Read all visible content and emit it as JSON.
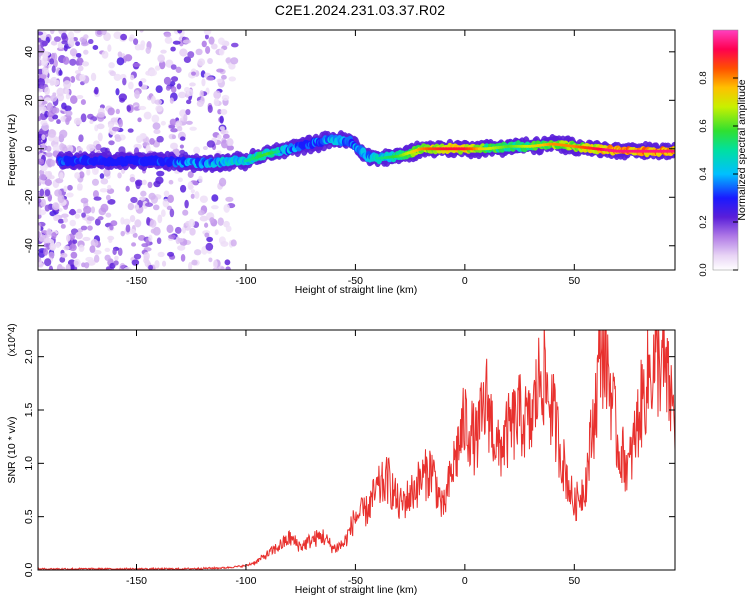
{
  "figure": {
    "title": "C2E1.2024.231.03.37.R02"
  },
  "chart_data": [
    {
      "type": "heatmap",
      "title": "C2E1.2024.231.03.37.R02",
      "xlabel": "Height of straight line (km)",
      "ylabel": "Frequency (Hz)",
      "xlim": [
        -195,
        96
      ],
      "ylim": [
        -50,
        49
      ],
      "xticks": [
        -150,
        -100,
        -50,
        0,
        50
      ],
      "yticks": [
        -40,
        -20,
        0,
        20,
        40
      ],
      "grid": false,
      "colorbar": {
        "label": "Normalized spectral amplitude",
        "range": [
          0.0,
          1.0
        ],
        "ticks": [
          0.0,
          0.2,
          0.4,
          0.6,
          0.8
        ],
        "colormap": "rainbow (white-violet-blue-cyan-green-yellow-red-magenta)"
      },
      "ridge": {
        "description": "Dominant spectral ridge",
        "x": [
          -178,
          -160,
          -140,
          -120,
          -100,
          -90,
          -80,
          -70,
          -60,
          -52,
          -45,
          -40,
          -30,
          -20,
          -10,
          0,
          10,
          20,
          30,
          40,
          50,
          60,
          70,
          80,
          95
        ],
        "frequency": [
          -5,
          -5,
          -5,
          -6,
          -5,
          -2,
          0,
          2,
          4,
          3,
          -3,
          -4,
          -3,
          0,
          0,
          0,
          0,
          1,
          1,
          2,
          1,
          0,
          -1,
          -1,
          -1
        ],
        "amplitude": [
          0.3,
          0.2,
          0.3,
          0.4,
          0.5,
          0.6,
          0.4,
          0.3,
          0.5,
          0.4,
          0.4,
          0.5,
          0.6,
          0.8,
          0.9,
          0.9,
          0.7,
          0.6,
          0.7,
          0.8,
          0.8,
          0.9,
          1.0,
          1.0,
          1.0
        ]
      }
    },
    {
      "type": "line",
      "xlabel": "Height of straight line (km)",
      "ylabel": "SNR (10 * v/v)",
      "yscale_label": "(x10^4)",
      "xlim": [
        -195,
        96
      ],
      "ylim": [
        0,
        2.25
      ],
      "xticks": [
        -150,
        -100,
        -50,
        0,
        50
      ],
      "yticks": [
        0.0,
        0.5,
        1.0,
        1.5,
        2.0
      ],
      "grid": false,
      "series": [
        {
          "color": "#e8312e",
          "x": [
            -195,
            -170,
            -150,
            -130,
            -110,
            -100,
            -95,
            -90,
            -85,
            -80,
            -75,
            -70,
            -65,
            -60,
            -55,
            -50,
            -45,
            -40,
            -35,
            -30,
            -25,
            -20,
            -15,
            -10,
            -5,
            0,
            5,
            10,
            15,
            20,
            25,
            30,
            35,
            40,
            45,
            50,
            55,
            60,
            62,
            65,
            70,
            75,
            80,
            85,
            90,
            96
          ],
          "y": [
            0.01,
            0.01,
            0.01,
            0.01,
            0.02,
            0.04,
            0.08,
            0.15,
            0.22,
            0.3,
            0.22,
            0.28,
            0.32,
            0.2,
            0.25,
            0.5,
            0.55,
            0.75,
            0.85,
            0.6,
            0.7,
            0.85,
            0.95,
            0.55,
            1.0,
            1.4,
            1.2,
            1.6,
            1.1,
            1.3,
            1.45,
            1.35,
            1.9,
            1.5,
            1.0,
            0.6,
            0.8,
            1.6,
            2.15,
            1.95,
            1.15,
            0.95,
            1.5,
            1.9,
            1.95,
            1.45
          ]
        }
      ]
    }
  ]
}
